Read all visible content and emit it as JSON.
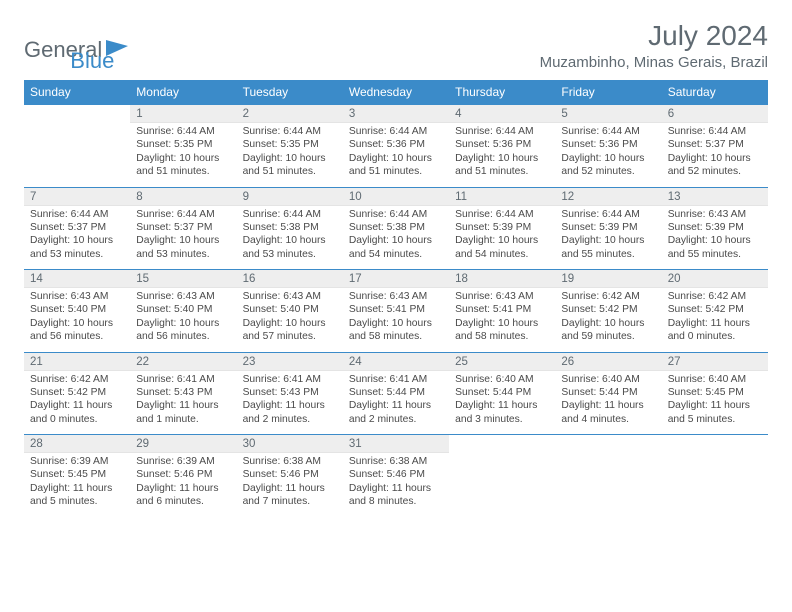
{
  "logo": {
    "text1": "General",
    "text2": "Blue"
  },
  "title": "July 2024",
  "location": "Muzambinho, Minas Gerais, Brazil",
  "colors": {
    "header_bg": "#3b8bc9",
    "header_text": "#ffffff",
    "daynum_bg": "#eeeeee",
    "daynum_border_top": "#3b8bc9",
    "text_muted": "#5f6a72",
    "body_text": "#4a4a4a",
    "page_bg": "#ffffff"
  },
  "typography": {
    "title_fontsize": 28,
    "location_fontsize": 15,
    "dow_fontsize": 12,
    "daynum_fontsize": 11.5,
    "details_fontsize": 10.3
  },
  "dow": [
    "Sunday",
    "Monday",
    "Tuesday",
    "Wednesday",
    "Thursday",
    "Friday",
    "Saturday"
  ],
  "weeks": [
    {
      "nums": [
        "",
        "1",
        "2",
        "3",
        "4",
        "5",
        "6"
      ],
      "details": [
        {
          "sunrise": "",
          "sunset": "",
          "daylight": ""
        },
        {
          "sunrise": "Sunrise: 6:44 AM",
          "sunset": "Sunset: 5:35 PM",
          "daylight": "Daylight: 10 hours and 51 minutes."
        },
        {
          "sunrise": "Sunrise: 6:44 AM",
          "sunset": "Sunset: 5:35 PM",
          "daylight": "Daylight: 10 hours and 51 minutes."
        },
        {
          "sunrise": "Sunrise: 6:44 AM",
          "sunset": "Sunset: 5:36 PM",
          "daylight": "Daylight: 10 hours and 51 minutes."
        },
        {
          "sunrise": "Sunrise: 6:44 AM",
          "sunset": "Sunset: 5:36 PM",
          "daylight": "Daylight: 10 hours and 51 minutes."
        },
        {
          "sunrise": "Sunrise: 6:44 AM",
          "sunset": "Sunset: 5:36 PM",
          "daylight": "Daylight: 10 hours and 52 minutes."
        },
        {
          "sunrise": "Sunrise: 6:44 AM",
          "sunset": "Sunset: 5:37 PM",
          "daylight": "Daylight: 10 hours and 52 minutes."
        }
      ]
    },
    {
      "nums": [
        "7",
        "8",
        "9",
        "10",
        "11",
        "12",
        "13"
      ],
      "details": [
        {
          "sunrise": "Sunrise: 6:44 AM",
          "sunset": "Sunset: 5:37 PM",
          "daylight": "Daylight: 10 hours and 53 minutes."
        },
        {
          "sunrise": "Sunrise: 6:44 AM",
          "sunset": "Sunset: 5:37 PM",
          "daylight": "Daylight: 10 hours and 53 minutes."
        },
        {
          "sunrise": "Sunrise: 6:44 AM",
          "sunset": "Sunset: 5:38 PM",
          "daylight": "Daylight: 10 hours and 53 minutes."
        },
        {
          "sunrise": "Sunrise: 6:44 AM",
          "sunset": "Sunset: 5:38 PM",
          "daylight": "Daylight: 10 hours and 54 minutes."
        },
        {
          "sunrise": "Sunrise: 6:44 AM",
          "sunset": "Sunset: 5:39 PM",
          "daylight": "Daylight: 10 hours and 54 minutes."
        },
        {
          "sunrise": "Sunrise: 6:44 AM",
          "sunset": "Sunset: 5:39 PM",
          "daylight": "Daylight: 10 hours and 55 minutes."
        },
        {
          "sunrise": "Sunrise: 6:43 AM",
          "sunset": "Sunset: 5:39 PM",
          "daylight": "Daylight: 10 hours and 55 minutes."
        }
      ]
    },
    {
      "nums": [
        "14",
        "15",
        "16",
        "17",
        "18",
        "19",
        "20"
      ],
      "details": [
        {
          "sunrise": "Sunrise: 6:43 AM",
          "sunset": "Sunset: 5:40 PM",
          "daylight": "Daylight: 10 hours and 56 minutes."
        },
        {
          "sunrise": "Sunrise: 6:43 AM",
          "sunset": "Sunset: 5:40 PM",
          "daylight": "Daylight: 10 hours and 56 minutes."
        },
        {
          "sunrise": "Sunrise: 6:43 AM",
          "sunset": "Sunset: 5:40 PM",
          "daylight": "Daylight: 10 hours and 57 minutes."
        },
        {
          "sunrise": "Sunrise: 6:43 AM",
          "sunset": "Sunset: 5:41 PM",
          "daylight": "Daylight: 10 hours and 58 minutes."
        },
        {
          "sunrise": "Sunrise: 6:43 AM",
          "sunset": "Sunset: 5:41 PM",
          "daylight": "Daylight: 10 hours and 58 minutes."
        },
        {
          "sunrise": "Sunrise: 6:42 AM",
          "sunset": "Sunset: 5:42 PM",
          "daylight": "Daylight: 10 hours and 59 minutes."
        },
        {
          "sunrise": "Sunrise: 6:42 AM",
          "sunset": "Sunset: 5:42 PM",
          "daylight": "Daylight: 11 hours and 0 minutes."
        }
      ]
    },
    {
      "nums": [
        "21",
        "22",
        "23",
        "24",
        "25",
        "26",
        "27"
      ],
      "details": [
        {
          "sunrise": "Sunrise: 6:42 AM",
          "sunset": "Sunset: 5:42 PM",
          "daylight": "Daylight: 11 hours and 0 minutes."
        },
        {
          "sunrise": "Sunrise: 6:41 AM",
          "sunset": "Sunset: 5:43 PM",
          "daylight": "Daylight: 11 hours and 1 minute."
        },
        {
          "sunrise": "Sunrise: 6:41 AM",
          "sunset": "Sunset: 5:43 PM",
          "daylight": "Daylight: 11 hours and 2 minutes."
        },
        {
          "sunrise": "Sunrise: 6:41 AM",
          "sunset": "Sunset: 5:44 PM",
          "daylight": "Daylight: 11 hours and 2 minutes."
        },
        {
          "sunrise": "Sunrise: 6:40 AM",
          "sunset": "Sunset: 5:44 PM",
          "daylight": "Daylight: 11 hours and 3 minutes."
        },
        {
          "sunrise": "Sunrise: 6:40 AM",
          "sunset": "Sunset: 5:44 PM",
          "daylight": "Daylight: 11 hours and 4 minutes."
        },
        {
          "sunrise": "Sunrise: 6:40 AM",
          "sunset": "Sunset: 5:45 PM",
          "daylight": "Daylight: 11 hours and 5 minutes."
        }
      ]
    },
    {
      "nums": [
        "28",
        "29",
        "30",
        "31",
        "",
        "",
        ""
      ],
      "details": [
        {
          "sunrise": "Sunrise: 6:39 AM",
          "sunset": "Sunset: 5:45 PM",
          "daylight": "Daylight: 11 hours and 5 minutes."
        },
        {
          "sunrise": "Sunrise: 6:39 AM",
          "sunset": "Sunset: 5:46 PM",
          "daylight": "Daylight: 11 hours and 6 minutes."
        },
        {
          "sunrise": "Sunrise: 6:38 AM",
          "sunset": "Sunset: 5:46 PM",
          "daylight": "Daylight: 11 hours and 7 minutes."
        },
        {
          "sunrise": "Sunrise: 6:38 AM",
          "sunset": "Sunset: 5:46 PM",
          "daylight": "Daylight: 11 hours and 8 minutes."
        },
        {
          "sunrise": "",
          "sunset": "",
          "daylight": ""
        },
        {
          "sunrise": "",
          "sunset": "",
          "daylight": ""
        },
        {
          "sunrise": "",
          "sunset": "",
          "daylight": ""
        }
      ]
    }
  ]
}
